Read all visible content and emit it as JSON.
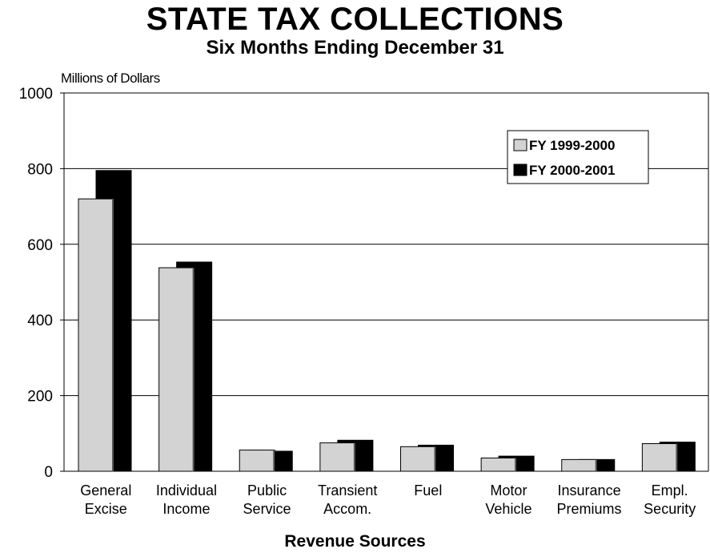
{
  "chart_data": {
    "type": "bar",
    "title": "STATE TAX COLLECTIONS",
    "subtitle": "Six Months Ending December 31",
    "ylabel": "Millions of Dollars",
    "xlabel": "Revenue Sources",
    "ylim": [
      0,
      1000
    ],
    "yticks": [
      0,
      200,
      400,
      600,
      800,
      1000
    ],
    "grid": true,
    "legend_position": "top-right",
    "categories": [
      [
        "General",
        "Excise"
      ],
      [
        "Individual",
        "Income"
      ],
      [
        "Public",
        "Service"
      ],
      [
        "Transient",
        "Accom."
      ],
      [
        "Fuel",
        ""
      ],
      [
        "Motor",
        "Vehicle"
      ],
      [
        "Insurance",
        "Premiums"
      ],
      [
        "Empl.",
        "Security"
      ]
    ],
    "series": [
      {
        "name": "FY 1999-2000",
        "color": "#d3d3d3",
        "values": [
          720,
          538,
          56,
          75,
          65,
          35,
          31,
          73
        ]
      },
      {
        "name": "FY 2000-2001",
        "color": "#000000",
        "values": [
          795,
          553,
          53,
          82,
          69,
          40,
          31,
          77
        ]
      }
    ]
  }
}
